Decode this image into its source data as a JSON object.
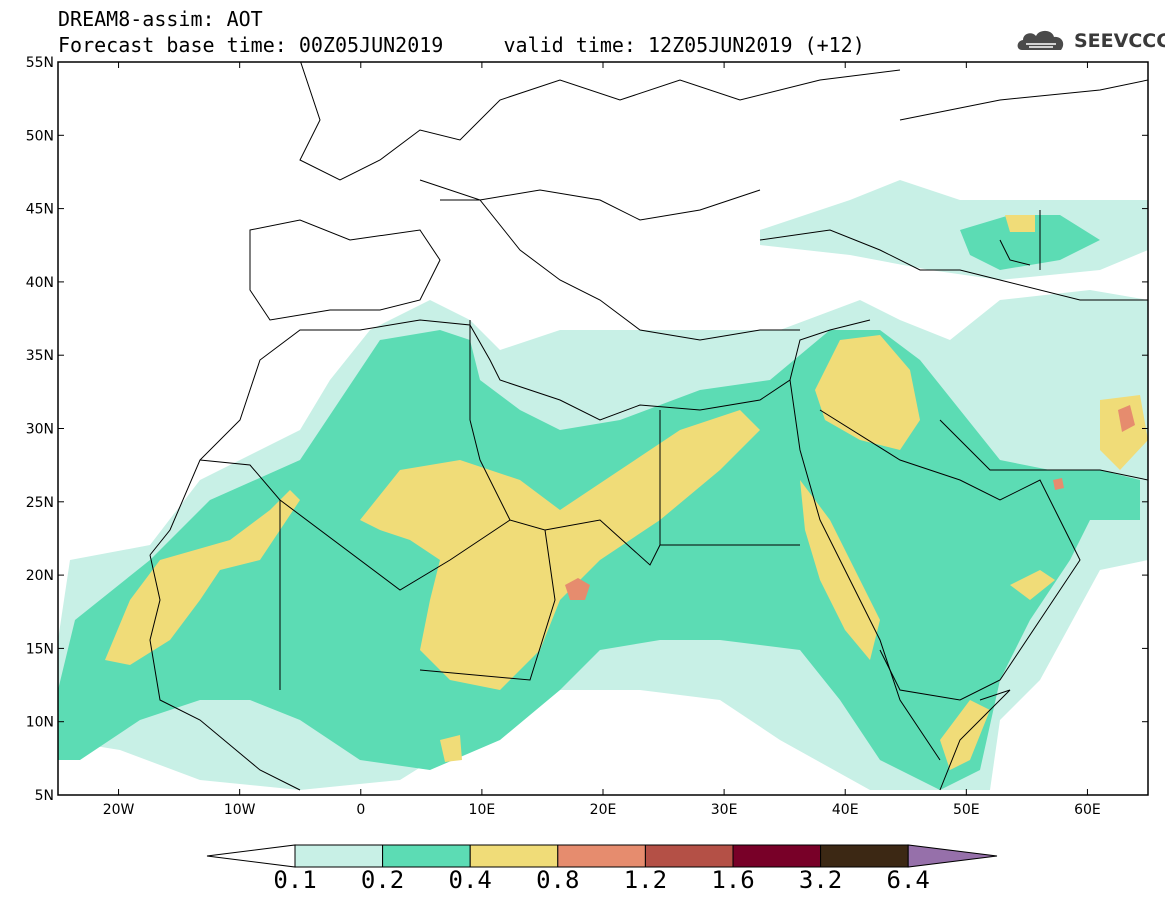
{
  "header": {
    "line1": "DREAM8-assim: AOT",
    "line2": "Forecast base time: 00Z05JUN2019     valid time: 12Z05JUN2019 (+12)"
  },
  "logo": {
    "text": "SEEVCCC",
    "icon": "cloud-icon"
  },
  "map": {
    "lon_range": [
      -25,
      65
    ],
    "lat_range": [
      5,
      55
    ],
    "lat_labels": [
      "55N",
      "50N",
      "45N",
      "40N",
      "35N",
      "30N",
      "25N",
      "20N",
      "15N",
      "10N",
      "5N"
    ],
    "lon_labels": [
      "20W",
      "10W",
      "0",
      "10E",
      "20E",
      "30E",
      "40E",
      "50E",
      "60E"
    ]
  },
  "colorbar": {
    "levels": [
      "0.1",
      "0.2",
      "0.4",
      "0.8",
      "1.2",
      "1.6",
      "3.2",
      "6.4"
    ],
    "colors": [
      "#c8f0e6",
      "#5cdcb4",
      "#f0dc78",
      "#e68c6e",
      "#b45046",
      "#780028",
      "#3c2814",
      "#9670aa"
    ]
  }
}
